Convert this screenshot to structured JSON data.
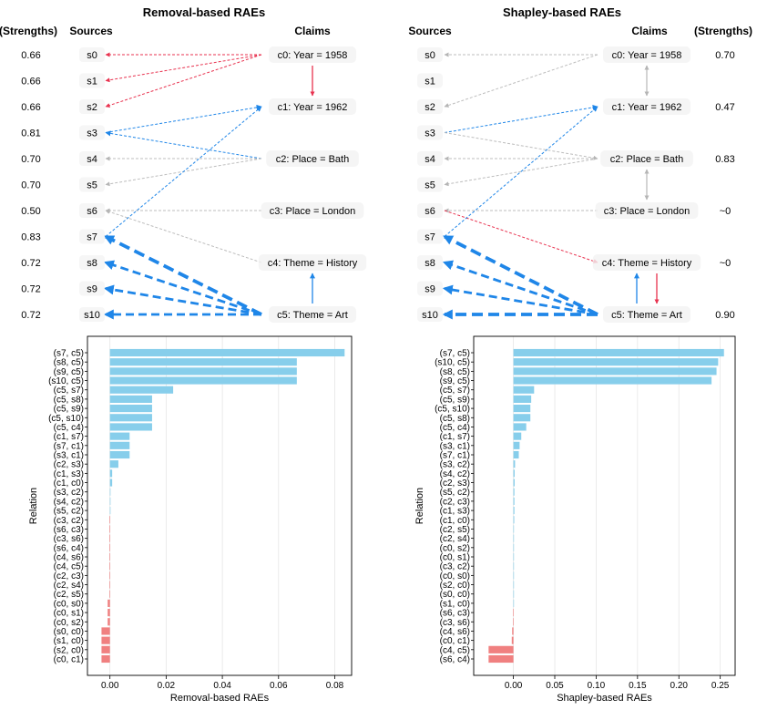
{
  "chart_data": [
    {
      "type": "graph",
      "title": "Removal-based RAEs",
      "sources_label": "Sources",
      "claims_label": "Claims",
      "strengths_label": "(Strengths)",
      "strengths_side": "left",
      "sources": [
        "s0",
        "s1",
        "s2",
        "s3",
        "s4",
        "s5",
        "s6",
        "s7",
        "s8",
        "s9",
        "s10"
      ],
      "source_strengths": [
        "0.66",
        "0.66",
        "0.66",
        "0.81",
        "0.70",
        "0.70",
        "0.50",
        "0.83",
        "0.72",
        "0.72",
        "0.72"
      ],
      "claims": [
        "c0: Year = 1958",
        "c1: Year = 1962",
        "c2: Place = Bath",
        "c3: Place = London",
        "c4: Theme = History",
        "c5: Theme = Art"
      ],
      "claim_strengths": [],
      "edges": [
        {
          "from": "c0",
          "to": "s0",
          "color": "red",
          "weight": 1
        },
        {
          "from": "c0",
          "to": "s1",
          "color": "red",
          "weight": 1
        },
        {
          "from": "c0",
          "to": "s2",
          "color": "red",
          "weight": 1
        },
        {
          "from": "s3",
          "to": "c1",
          "color": "blue",
          "weight": 1
        },
        {
          "from": "c2",
          "to": "s3",
          "color": "blue",
          "weight": 1
        },
        {
          "from": "c2",
          "to": "s4",
          "color": "gray",
          "weight": 1
        },
        {
          "from": "c2",
          "to": "s5",
          "color": "gray",
          "weight": 1
        },
        {
          "from": "c3",
          "to": "s6",
          "color": "gray",
          "weight": 1
        },
        {
          "from": "c4",
          "to": "s6",
          "color": "gray",
          "weight": 1
        },
        {
          "from": "s7",
          "to": "c1",
          "color": "blue",
          "weight": 1
        },
        {
          "from": "c5",
          "to": "s7",
          "color": "blue",
          "weight": 4
        },
        {
          "from": "c5",
          "to": "s8",
          "color": "blue",
          "weight": 3
        },
        {
          "from": "c5",
          "to": "s9",
          "color": "blue",
          "weight": 3
        },
        {
          "from": "c5",
          "to": "s10",
          "color": "blue",
          "weight": 3
        }
      ],
      "claim_arrows": [
        {
          "from": "c0",
          "to": "c1",
          "color": "red",
          "style": "solid"
        },
        {
          "from": "c5",
          "to": "c4",
          "color": "blue",
          "style": "solid"
        }
      ]
    },
    {
      "type": "graph",
      "title": "Shapley-based RAEs",
      "sources_label": "Sources",
      "claims_label": "Claims",
      "strengths_label": "(Strengths)",
      "strengths_side": "right",
      "sources": [
        "s0",
        "s1",
        "s2",
        "s3",
        "s4",
        "s5",
        "s6",
        "s7",
        "s8",
        "s9",
        "s10"
      ],
      "source_strengths": [],
      "claims": [
        "c0: Year = 1958",
        "c1: Year = 1962",
        "c2: Place = Bath",
        "c3: Place = London",
        "c4: Theme = History",
        "c5: Theme = Art"
      ],
      "claim_strengths": [
        "0.70",
        "0.47",
        "0.83",
        "~0",
        "~0",
        "0.90"
      ],
      "edges": [
        {
          "from": "c0",
          "to": "s0",
          "color": "gray",
          "weight": 1
        },
        {
          "from": "c0",
          "to": "s2",
          "color": "gray",
          "weight": 1
        },
        {
          "from": "s3",
          "to": "c1",
          "color": "blue",
          "weight": 1
        },
        {
          "from": "s3",
          "to": "c2",
          "color": "gray",
          "weight": 1
        },
        {
          "from": "c2",
          "to": "s4",
          "color": "gray",
          "weight": 1
        },
        {
          "from": "c2",
          "to": "s5",
          "color": "gray",
          "weight": 1
        },
        {
          "from": "c3",
          "to": "s6",
          "color": "gray",
          "weight": 1
        },
        {
          "from": "s6",
          "to": "c4",
          "color": "red",
          "weight": 1
        },
        {
          "from": "s7",
          "to": "c1",
          "color": "blue",
          "weight": 1
        },
        {
          "from": "c5",
          "to": "s7",
          "color": "blue",
          "weight": 4
        },
        {
          "from": "c5",
          "to": "s8",
          "color": "blue",
          "weight": 3
        },
        {
          "from": "c5",
          "to": "s9",
          "color": "blue",
          "weight": 3
        },
        {
          "from": "c5",
          "to": "s10",
          "color": "blue",
          "weight": 4
        }
      ],
      "claim_arrows": [
        {
          "from": "c0",
          "to": "c1",
          "color": "gray",
          "style": "double"
        },
        {
          "from": "c2",
          "to": "c3",
          "color": "gray",
          "style": "double"
        },
        {
          "from": "c5",
          "to": "c4",
          "color": "blue",
          "style": "solid",
          "offset": -1
        },
        {
          "from": "c4",
          "to": "c5",
          "color": "red",
          "style": "solid",
          "offset": 1
        }
      ]
    },
    {
      "type": "bar",
      "orientation": "horizontal",
      "xlabel": "Removal-based RAEs",
      "ylabel": "Relation",
      "xlim": [
        -0.008,
        0.086
      ],
      "xticks": [
        0.0,
        0.02,
        0.04,
        0.06,
        0.08
      ],
      "xtick_labels": [
        "0.00",
        "0.02",
        "0.04",
        "0.06",
        "0.08"
      ],
      "grid": true,
      "categories": [
        "(s7, c5)",
        "(s8, c5)",
        "(s9, c5)",
        "(s10, c5)",
        "(c5, s7)",
        "(c5, s8)",
        "(c5, s9)",
        "(c5, s10)",
        "(c5, c4)",
        "(c1, s7)",
        "(s7, c1)",
        "(s3, c1)",
        "(c2, s3)",
        "(c1, s3)",
        "(c1, c0)",
        "(s3, c2)",
        "(s4, c2)",
        "(s5, c2)",
        "(c3, c2)",
        "(s6, c3)",
        "(c3, s6)",
        "(s6, c4)",
        "(c4, s6)",
        "(c4, c5)",
        "(c2, c3)",
        "(c2, s4)",
        "(c2, s5)",
        "(c0, s0)",
        "(c0, s1)",
        "(c0, s2)",
        "(s0, c0)",
        "(s1, c0)",
        "(s2, c0)",
        "(c0, c1)"
      ],
      "values": [
        0.0835,
        0.0665,
        0.0665,
        0.0665,
        0.0225,
        0.015,
        0.015,
        0.015,
        0.015,
        0.007,
        0.007,
        0.007,
        0.003,
        0.0008,
        0.0008,
        0.0,
        0.0,
        0.0,
        -0.0002,
        -0.0002,
        -0.0002,
        -0.0002,
        -0.0002,
        -0.0002,
        -0.0002,
        -0.0002,
        -0.0002,
        -0.0008,
        -0.0008,
        -0.0008,
        -0.003,
        -0.003,
        -0.003,
        -0.003
      ],
      "positive_color": "#87ceeb",
      "negative_color": "#f08080"
    },
    {
      "type": "bar",
      "orientation": "horizontal",
      "xlabel": "Shapley-based RAEs",
      "ylabel": "Relation",
      "xlim": [
        -0.048,
        0.268
      ],
      "xticks": [
        0.0,
        0.05,
        0.1,
        0.15,
        0.2,
        0.25
      ],
      "xtick_labels": [
        "0.00",
        "0.05",
        "0.10",
        "0.15",
        "0.20",
        "0.25"
      ],
      "grid": true,
      "categories": [
        "(s7, c5)",
        "(s10, c5)",
        "(s8, c5)",
        "(s9, c5)",
        "(c5, s7)",
        "(c5, s9)",
        "(c5, s10)",
        "(c5, s8)",
        "(c5, c4)",
        "(c1, s7)",
        "(s3, c1)",
        "(s7, c1)",
        "(s3, c2)",
        "(s4, c2)",
        "(c2, s3)",
        "(s5, c2)",
        "(c2, c3)",
        "(c1, s3)",
        "(c1, c0)",
        "(c2, s5)",
        "(c2, s4)",
        "(c0, s2)",
        "(c0, s1)",
        "(c3, c2)",
        "(c0, s0)",
        "(s2, c0)",
        "(s0, c0)",
        "(s1, c0)",
        "(s6, c3)",
        "(c3, s6)",
        "(c4, s6)",
        "(c0, c1)",
        "(c4, c5)",
        "(s6, c4)"
      ],
      "values": [
        0.2545,
        0.2475,
        0.2455,
        0.2395,
        0.025,
        0.0215,
        0.0205,
        0.0205,
        0.0155,
        0.0095,
        0.0075,
        0.0065,
        0.002,
        0.0015,
        0.0015,
        0.0012,
        0.0012,
        0.0012,
        0.001,
        0.0005,
        0.0005,
        0.0003,
        0.0003,
        0.0003,
        0.0002,
        0.0002,
        0.0002,
        0.0002,
        -0.0002,
        -0.0003,
        -0.0015,
        -0.002,
        -0.03,
        -0.03
      ],
      "positive_color": "#87ceeb",
      "negative_color": "#f08080"
    }
  ]
}
